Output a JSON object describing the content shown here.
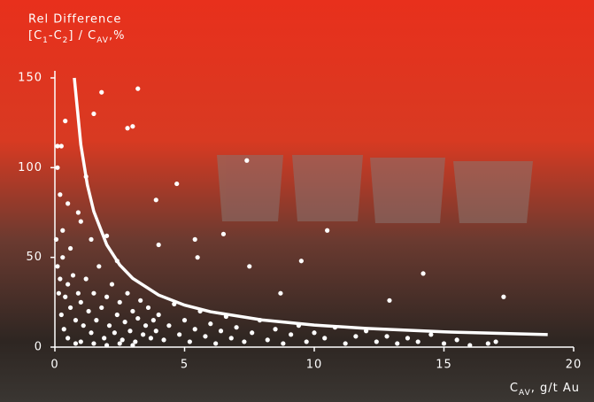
{
  "chart_data": {
    "type": "scatter",
    "ylabel": {
      "line1": "Rel Difference",
      "line2": [
        {
          "text": "[C"
        },
        {
          "text": "1",
          "sub": true
        },
        {
          "text": "-C"
        },
        {
          "text": "2",
          "sub": true
        },
        {
          "text": "] / C"
        },
        {
          "text": "AV",
          "sub": true
        },
        {
          "text": ",%"
        }
      ]
    },
    "xlabel": [
      {
        "text": "C"
      },
      {
        "text": "AV",
        "sub": true
      },
      {
        "text": ", g/t Au"
      }
    ],
    "xlim": [
      0,
      20
    ],
    "xticks": [
      0,
      5,
      10,
      15,
      20
    ],
    "ylim": [
      0,
      150
    ],
    "yticks": [
      0,
      50,
      100,
      150
    ],
    "points": {
      "color": "#ffffff",
      "x": [
        0.1,
        0.2,
        0.3,
        0.15,
        0.4,
        0.5,
        0.6,
        0.7,
        0.25,
        0.35,
        0.5,
        0.8,
        0.9,
        1.0,
        1.1,
        1.2,
        1.3,
        1.4,
        1.5,
        1.6,
        1.7,
        1.8,
        1.9,
        2.0,
        2.1,
        2.2,
        2.3,
        2.4,
        2.5,
        2.6,
        2.7,
        2.8,
        2.9,
        3.0,
        3.1,
        3.2,
        3.3,
        3.4,
        3.5,
        3.6,
        3.7,
        3.8,
        3.9,
        4.0,
        4.2,
        4.4,
        4.6,
        4.8,
        5.0,
        5.2,
        5.4,
        5.6,
        5.8,
        6.0,
        6.2,
        6.4,
        6.6,
        6.8,
        7.0,
        7.3,
        7.6,
        7.9,
        8.2,
        8.5,
        8.8,
        9.1,
        9.4,
        9.7,
        10.0,
        10.4,
        10.8,
        11.2,
        11.6,
        12.0,
        12.4,
        12.8,
        13.2,
        13.6,
        14.0,
        14.5,
        15.0,
        15.5,
        16.0,
        16.7,
        17.0,
        0.05,
        0.3,
        0.2,
        0.5,
        1.0,
        0.9,
        1.2,
        1.4,
        2.0,
        2.4,
        0.6,
        0.8,
        1.0,
        1.5,
        2.0,
        2.5,
        3.0,
        1.8,
        3.2,
        1.5,
        2.8,
        3.0,
        0.1,
        0.1,
        0.25,
        0.4,
        6.5,
        7.4,
        4.7,
        3.9,
        4.0,
        5.4,
        5.5,
        10.5,
        14.2,
        17.3,
        7.5,
        9.5,
        8.7,
        12.9
      ],
      "y": [
        45,
        38,
        50,
        30,
        28,
        35,
        22,
        40,
        18,
        10,
        5,
        15,
        30,
        25,
        12,
        38,
        20,
        8,
        30,
        15,
        45,
        22,
        5,
        28,
        12,
        35,
        8,
        18,
        25,
        4,
        14,
        30,
        9,
        20,
        3,
        16,
        26,
        7,
        12,
        22,
        5,
        15,
        9,
        18,
        4,
        12,
        24,
        7,
        15,
        3,
        10,
        20,
        6,
        13,
        2,
        9,
        17,
        5,
        11,
        3,
        8,
        15,
        4,
        10,
        2,
        7,
        12,
        3,
        8,
        5,
        11,
        2,
        6,
        9,
        3,
        6,
        2,
        5,
        3,
        7,
        2,
        4,
        1,
        2,
        3,
        60,
        65,
        85,
        80,
        70,
        75,
        95,
        60,
        62,
        48,
        55,
        2,
        3,
        2,
        1,
        2,
        1,
        142,
        144,
        130,
        122,
        123,
        100,
        112,
        112,
        126,
        63,
        104,
        91,
        82,
        57,
        60,
        50,
        65,
        41,
        28,
        45,
        48,
        30,
        26
      ]
    },
    "fit": {
      "color": "#ffffff",
      "x": [
        0.75,
        1,
        1.25,
        1.5,
        2,
        2.5,
        3,
        4,
        5,
        6,
        8,
        10,
        12,
        15,
        19
      ],
      "y": [
        150,
        112.8,
        90.5,
        75.6,
        57,
        45.8,
        38.3,
        29,
        23.4,
        19.7,
        15.1,
        12.3,
        10.4,
        8.5,
        7
      ]
    }
  }
}
